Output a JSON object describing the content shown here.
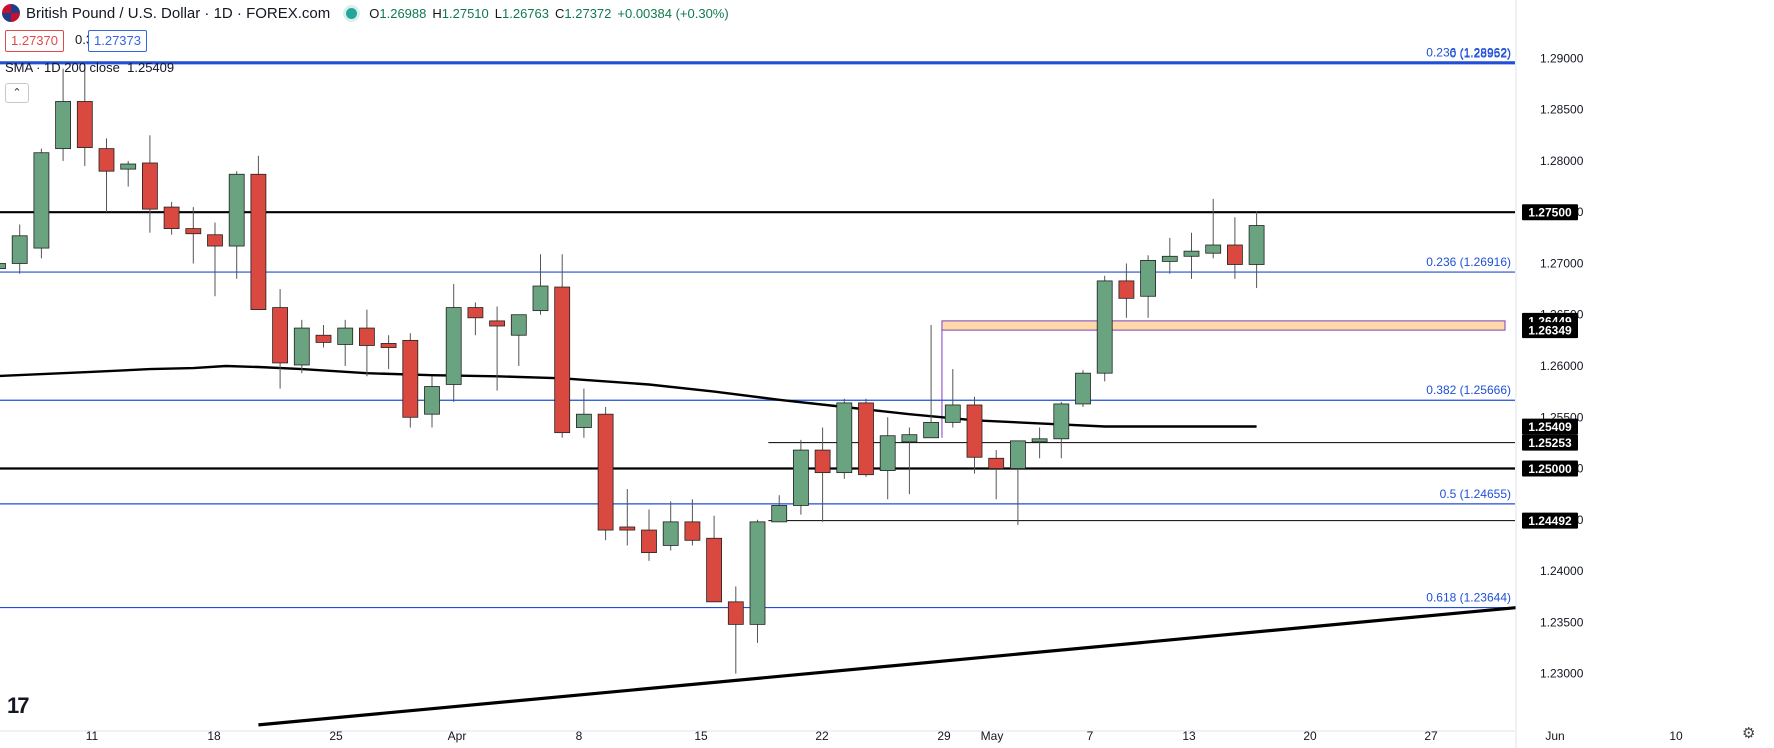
{
  "header": {
    "symbol_title": "British Pound / U.S. Dollar · 1D · FOREX.com",
    "ohlc": {
      "open_label": "O",
      "open": "1.26988",
      "high_label": "H",
      "high": "1.27510",
      "low_label": "L",
      "low": "1.26763",
      "close_label": "C",
      "close": "1.27372",
      "change": "+0.00384 (+0.30%)"
    }
  },
  "trade": {
    "sell_price": "1.27370",
    "spread": "0.3",
    "buy_price": "1.27373"
  },
  "indicator": {
    "label": "SMA · 1D 200 close",
    "value": "1.25409",
    "collapse_icon": "chevron-up-icon"
  },
  "colors": {
    "up": "#6aa37f",
    "down": "#d9493f",
    "fib": "#1f4fd6",
    "level": "#000000",
    "zone_fill": "#ffd9a8",
    "zone_border": "#7b3fc6"
  },
  "chart_data": {
    "type": "candlestick",
    "y_axis": {
      "range": [
        1.2245,
        1.2955
      ],
      "ticks": [
        "1.29000",
        "1.28500",
        "1.28000",
        "1.27500",
        "1.27000",
        "1.26500",
        "1.26000",
        "1.25500",
        "1.25000",
        "1.24500",
        "1.24000",
        "1.23500",
        "1.23000"
      ]
    },
    "x_axis": {
      "ticks": [
        "11",
        "18",
        "25",
        "Apr",
        "8",
        "15",
        "22",
        "29",
        "May",
        "7",
        "13",
        "20",
        "27",
        "Jun",
        "10"
      ]
    },
    "candles": [
      {
        "o": 1.2695,
        "h": 1.2735,
        "l": 1.269,
        "c": 1.27
      },
      {
        "o": 1.27,
        "h": 1.2738,
        "l": 1.269,
        "c": 1.2727
      },
      {
        "o": 1.2715,
        "h": 1.2812,
        "l": 1.2705,
        "c": 1.2808
      },
      {
        "o": 1.2812,
        "h": 1.289,
        "l": 1.28,
        "c": 1.2858
      },
      {
        "o": 1.2858,
        "h": 1.2895,
        "l": 1.2795,
        "c": 1.2813
      },
      {
        "o": 1.2812,
        "h": 1.2822,
        "l": 1.275,
        "c": 1.279
      },
      {
        "o": 1.2792,
        "h": 1.28,
        "l": 1.2775,
        "c": 1.2797
      },
      {
        "o": 1.2798,
        "h": 1.2825,
        "l": 1.273,
        "c": 1.2753
      },
      {
        "o": 1.2755,
        "h": 1.276,
        "l": 1.2728,
        "c": 1.2734
      },
      {
        "o": 1.2734,
        "h": 1.2755,
        "l": 1.27,
        "c": 1.2729
      },
      {
        "o": 1.2728,
        "h": 1.274,
        "l": 1.2668,
        "c": 1.2717
      },
      {
        "o": 1.2717,
        "h": 1.279,
        "l": 1.2685,
        "c": 1.2787
      },
      {
        "o": 1.2787,
        "h": 1.2805,
        "l": 1.2655,
        "c": 1.2655
      },
      {
        "o": 1.2657,
        "h": 1.2675,
        "l": 1.2578,
        "c": 1.2603
      },
      {
        "o": 1.2601,
        "h": 1.2645,
        "l": 1.2593,
        "c": 1.2637
      },
      {
        "o": 1.263,
        "h": 1.264,
        "l": 1.2618,
        "c": 1.2623
      },
      {
        "o": 1.2621,
        "h": 1.2645,
        "l": 1.26,
        "c": 1.2637
      },
      {
        "o": 1.2637,
        "h": 1.2655,
        "l": 1.259,
        "c": 1.262
      },
      {
        "o": 1.2622,
        "h": 1.263,
        "l": 1.2597,
        "c": 1.2618
      },
      {
        "o": 1.2625,
        "h": 1.2632,
        "l": 1.254,
        "c": 1.255
      },
      {
        "o": 1.2553,
        "h": 1.259,
        "l": 1.254,
        "c": 1.258
      },
      {
        "o": 1.2582,
        "h": 1.268,
        "l": 1.2565,
        "c": 1.2657
      },
      {
        "o": 1.2657,
        "h": 1.2662,
        "l": 1.263,
        "c": 1.2647
      },
      {
        "o": 1.2644,
        "h": 1.2658,
        "l": 1.2576,
        "c": 1.2639
      },
      {
        "o": 1.263,
        "h": 1.265,
        "l": 1.26,
        "c": 1.265
      },
      {
        "o": 1.2654,
        "h": 1.2709,
        "l": 1.265,
        "c": 1.2678
      },
      {
        "o": 1.2677,
        "h": 1.2709,
        "l": 1.253,
        "c": 1.2535
      },
      {
        "o": 1.254,
        "h": 1.2578,
        "l": 1.253,
        "c": 1.2553
      },
      {
        "o": 1.2553,
        "h": 1.256,
        "l": 1.243,
        "c": 1.244
      },
      {
        "o": 1.2443,
        "h": 1.248,
        "l": 1.2425,
        "c": 1.244
      },
      {
        "o": 1.244,
        "h": 1.246,
        "l": 1.241,
        "c": 1.2418
      },
      {
        "o": 1.2425,
        "h": 1.2468,
        "l": 1.242,
        "c": 1.2448
      },
      {
        "o": 1.2448,
        "h": 1.247,
        "l": 1.2425,
        "c": 1.243
      },
      {
        "o": 1.2432,
        "h": 1.2454,
        "l": 1.237,
        "c": 1.237
      },
      {
        "o": 1.237,
        "h": 1.2385,
        "l": 1.23,
        "c": 1.2348
      },
      {
        "o": 1.2348,
        "h": 1.245,
        "l": 1.233,
        "c": 1.2448
      },
      {
        "o": 1.2448,
        "h": 1.2474,
        "l": 1.2448,
        "c": 1.2464
      },
      {
        "o": 1.2464,
        "h": 1.2528,
        "l": 1.2455,
        "c": 1.2518
      },
      {
        "o": 1.2518,
        "h": 1.254,
        "l": 1.2448,
        "c": 1.2496
      },
      {
        "o": 1.2496,
        "h": 1.2568,
        "l": 1.249,
        "c": 1.2564
      },
      {
        "o": 1.2564,
        "h": 1.2568,
        "l": 1.2492,
        "c": 1.2494
      },
      {
        "o": 1.2498,
        "h": 1.255,
        "l": 1.247,
        "c": 1.2532
      },
      {
        "o": 1.2526,
        "h": 1.254,
        "l": 1.2475,
        "c": 1.2533
      },
      {
        "o": 1.253,
        "h": 1.264,
        "l": 1.253,
        "c": 1.2545
      },
      {
        "o": 1.2545,
        "h": 1.2597,
        "l": 1.254,
        "c": 1.2562
      },
      {
        "o": 1.2562,
        "h": 1.257,
        "l": 1.2495,
        "c": 1.2511
      },
      {
        "o": 1.251,
        "h": 1.2518,
        "l": 1.247,
        "c": 1.25
      },
      {
        "o": 1.25,
        "h": 1.252,
        "l": 1.2445,
        "c": 1.2527
      },
      {
        "o": 1.2526,
        "h": 1.254,
        "l": 1.251,
        "c": 1.2529
      },
      {
        "o": 1.2529,
        "h": 1.2565,
        "l": 1.251,
        "c": 1.2563
      },
      {
        "o": 1.2563,
        "h": 1.2596,
        "l": 1.256,
        "c": 1.2593
      },
      {
        "o": 1.2593,
        "h": 1.2688,
        "l": 1.2585,
        "c": 1.2683
      },
      {
        "o": 1.2683,
        "h": 1.27,
        "l": 1.2647,
        "c": 1.2666
      },
      {
        "o": 1.2668,
        "h": 1.2708,
        "l": 1.2647,
        "c": 1.2703
      },
      {
        "o": 1.2702,
        "h": 1.2725,
        "l": 1.269,
        "c": 1.2707
      },
      {
        "o": 1.2707,
        "h": 1.273,
        "l": 1.2685,
        "c": 1.2712
      },
      {
        "o": 1.271,
        "h": 1.2763,
        "l": 1.2705,
        "c": 1.2718
      },
      {
        "o": 1.2718,
        "h": 1.2745,
        "l": 1.2685,
        "c": 1.2699
      },
      {
        "o": 1.2699,
        "h": 1.2751,
        "l": 1.2676,
        "c": 1.2737
      }
    ],
    "sma200": [
      {
        "i": -0.3,
        "v": 1.259
      },
      {
        "i": 4,
        "v": 1.2594
      },
      {
        "i": 7,
        "v": 1.2597
      },
      {
        "i": 9,
        "v": 1.2598
      },
      {
        "i": 10.5,
        "v": 1.26
      },
      {
        "i": 12,
        "v": 1.2599
      },
      {
        "i": 14,
        "v": 1.2597
      },
      {
        "i": 17,
        "v": 1.2593
      },
      {
        "i": 20,
        "v": 1.2591
      },
      {
        "i": 23,
        "v": 1.259
      },
      {
        "i": 26,
        "v": 1.2588
      },
      {
        "i": 30,
        "v": 1.2582
      },
      {
        "i": 33,
        "v": 1.2575
      },
      {
        "i": 36,
        "v": 1.2567
      },
      {
        "i": 39,
        "v": 1.256
      },
      {
        "i": 42,
        "v": 1.2553
      },
      {
        "i": 45,
        "v": 1.2547
      },
      {
        "i": 48,
        "v": 1.2544
      },
      {
        "i": 51,
        "v": 1.2541
      },
      {
        "i": 54,
        "v": 1.2541
      },
      {
        "i": 58,
        "v": 1.2541
      }
    ],
    "horizontal_levels": [
      {
        "value": 1.275,
        "label": "1.27500",
        "kind": "level"
      },
      {
        "value": 1.2644,
        "label": "1.26449",
        "kind": "zone-top"
      },
      {
        "value": 1.2635,
        "label": "1.26349",
        "kind": "zone-bottom"
      },
      {
        "value": 1.25409,
        "label": "1.25409",
        "kind": "sma"
      },
      {
        "value": 1.25253,
        "label": "1.25253",
        "kind": "level-thin"
      },
      {
        "value": 1.25,
        "label": "1.25000",
        "kind": "level"
      },
      {
        "value": 1.24492,
        "label": "1.24492",
        "kind": "level-thin"
      }
    ],
    "fibonacci": [
      {
        "value": 1.28952,
        "label": "0 (1.28952)"
      },
      {
        "value": 1.28962,
        "label": "0.236 (1.28962)"
      },
      {
        "value": 1.26916,
        "label": "0.236 (1.26916)"
      },
      {
        "value": 1.25666,
        "label": "0.382 (1.25666)"
      },
      {
        "value": 1.24655,
        "label": "0.5 (1.24655)"
      },
      {
        "value": 1.23644,
        "label": "0.618 (1.23644)"
      }
    ],
    "trendline": {
      "from": {
        "i": 12,
        "v": 1.225
      },
      "to": {
        "i": 70,
        "v": 1.23644
      }
    },
    "zone": {
      "from_i": 43.5,
      "top": 1.2644,
      "bottom": 1.2635
    },
    "title": "British Pound / U.S. Dollar · 1D · FOREX.com",
    "grid": false
  },
  "footer": {
    "logo": "17",
    "settings_icon": "gear-icon"
  }
}
